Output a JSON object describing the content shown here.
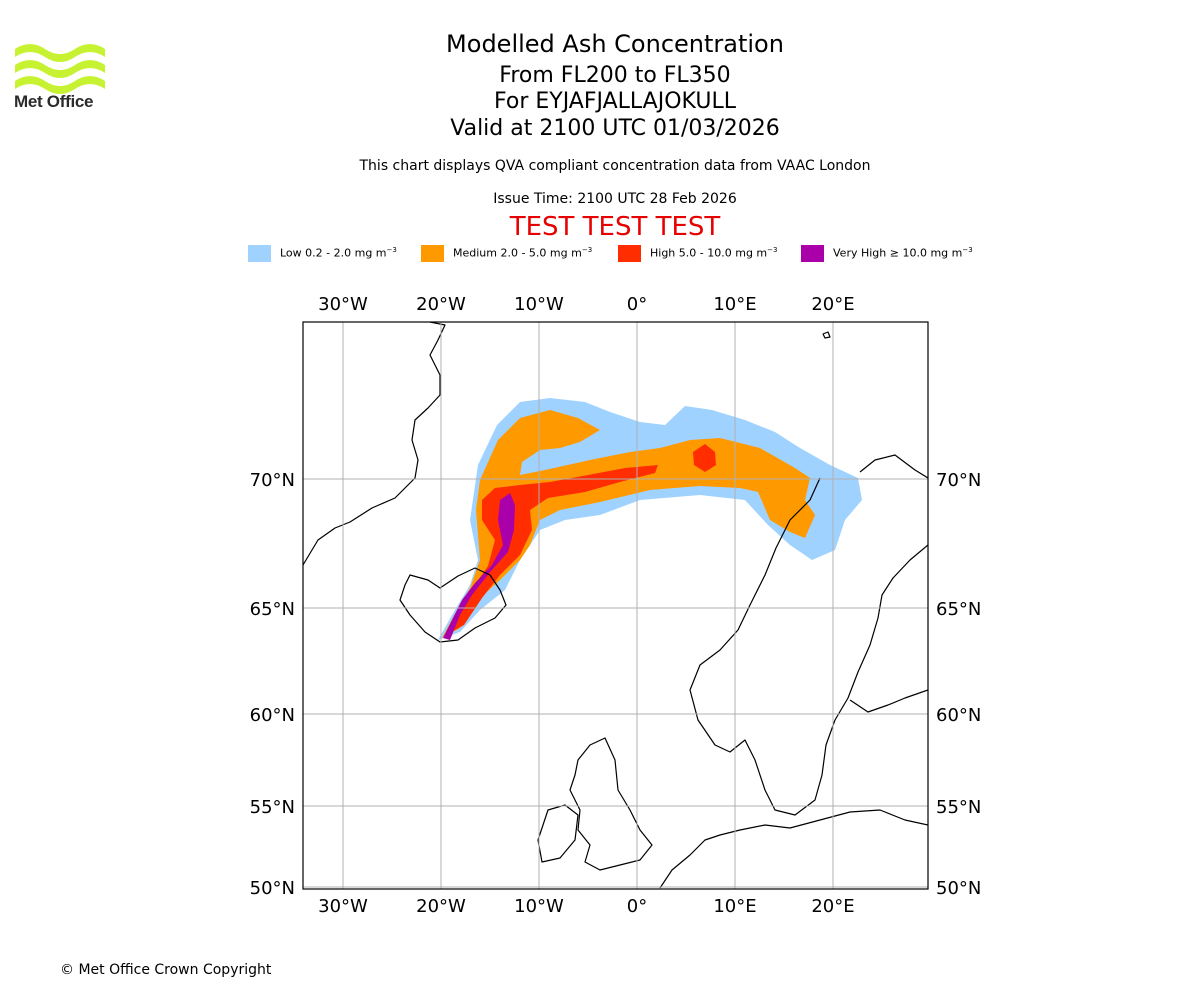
{
  "branding": {
    "logo_text": "Met Office",
    "logo_color": "#c6f231"
  },
  "titles": {
    "main": "Modelled Ash Concentration",
    "levels": "From FL200 to FL350",
    "volcano": "For EYJAFJALLAJOKULL",
    "valid": "Valid at 2100 UTC 01/03/2026",
    "description": "This chart displays QVA compliant concentration data from VAAC London",
    "issue": "Issue Time: 2100 UTC 28 Feb 2026",
    "test_banner": "TEST TEST TEST"
  },
  "legend": [
    {
      "label": "Low 0.2 - 2.0 mg m",
      "unit_exp": "−3",
      "color": "#a0d2ff"
    },
    {
      "label": "Medium 2.0 - 5.0 mg m",
      "unit_exp": "−3",
      "color": "#ff9900"
    },
    {
      "label": "High 5.0 - 10.0 mg m",
      "unit_exp": "−3",
      "color": "#ff2d00"
    },
    {
      "label": "Very High  ≥  10.0 mg m",
      "unit_exp": "−3",
      "color": "#aa00aa"
    }
  ],
  "map": {
    "lon_labels": [
      "30°W",
      "20°W",
      "10°W",
      "0°",
      "10°E",
      "20°E"
    ],
    "lat_labels": [
      "70°N",
      "65°N",
      "60°N",
      "55°N",
      "50°N"
    ],
    "extent": {
      "lon_min": -34,
      "lon_max": 29,
      "lat_min": 50,
      "lat_max": 76
    }
  },
  "footer": {
    "copyright": "© Met Office Crown Copyright"
  }
}
